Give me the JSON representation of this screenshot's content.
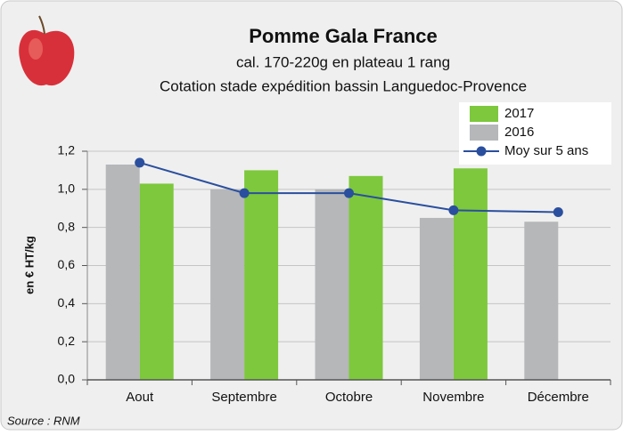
{
  "chart_data": {
    "type": "bar",
    "title": "Pomme Gala France",
    "subtitle": "cal. 170-220g en plateau 1 rang",
    "subtitle2": "Cotation stade expédition bassin Languedoc-Provence",
    "y_label": "en € HT/kg",
    "source": "Source : RNM",
    "categories": [
      "Aout",
      "Septembre",
      "Octobre",
      "Novembre",
      "Décembre"
    ],
    "series": [
      {
        "name": "2017",
        "type": "bar",
        "color": "#7dc83c",
        "values": [
          1.03,
          1.1,
          1.07,
          1.11,
          null
        ]
      },
      {
        "name": "2016",
        "type": "bar",
        "color": "#b5b7b9",
        "values": [
          1.13,
          1.0,
          1.0,
          0.85,
          0.83
        ]
      },
      {
        "name": "Moy sur 5 ans",
        "type": "line",
        "color": "#2a4f9e",
        "values": [
          1.14,
          0.98,
          0.98,
          0.89,
          0.88
        ]
      }
    ],
    "ylim": [
      0,
      1.2
    ],
    "yticks": [
      {
        "value": 0,
        "label": "0,0"
      },
      {
        "value": 0.2,
        "label": "0,2"
      },
      {
        "value": 0.4,
        "label": "0,4"
      },
      {
        "value": 0.6,
        "label": "0,6"
      },
      {
        "value": 0.8,
        "label": "0,8"
      },
      {
        "value": 1.0,
        "label": "1,0"
      },
      {
        "value": 1.2,
        "label": "1,2"
      }
    ],
    "grid": true
  }
}
